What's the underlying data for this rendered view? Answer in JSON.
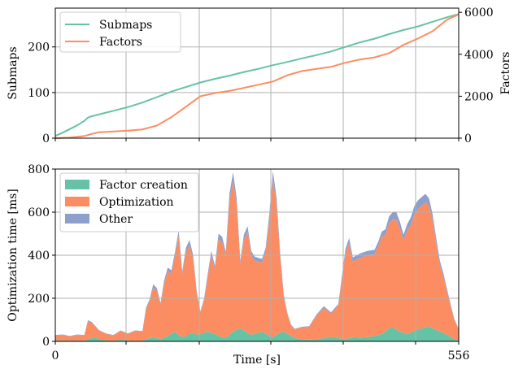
{
  "chart_data": [
    {
      "type": "line",
      "xlim": [
        0,
        556
      ],
      "ylabel": "Submaps",
      "ylim": [
        0,
        285
      ],
      "yticks": [
        0,
        100,
        200
      ],
      "ylabel_right": "Factors",
      "ylim_right": [
        0,
        6200
      ],
      "yticks_right": [
        0,
        2000,
        4000,
        6000
      ],
      "grid": true,
      "legend_placement": "top-left",
      "series": [
        {
          "name": "Submaps",
          "axis": "left",
          "color": "#66c2a5",
          "x": [
            0,
            10,
            20,
            30,
            40,
            45,
            50,
            60,
            80,
            100,
            120,
            140,
            160,
            180,
            200,
            220,
            240,
            260,
            280,
            300,
            320,
            340,
            360,
            380,
            400,
            420,
            440,
            460,
            480,
            500,
            520,
            540,
            556
          ],
          "y": [
            5,
            12,
            20,
            28,
            38,
            45,
            48,
            52,
            60,
            68,
            78,
            90,
            102,
            112,
            122,
            130,
            137,
            145,
            152,
            160,
            167,
            175,
            182,
            190,
            200,
            210,
            218,
            228,
            237,
            245,
            255,
            265,
            272
          ]
        },
        {
          "name": "Factors",
          "axis": "right",
          "color": "#fc8d62",
          "x": [
            0,
            20,
            40,
            50,
            60,
            80,
            100,
            120,
            140,
            160,
            180,
            200,
            220,
            240,
            260,
            280,
            300,
            320,
            340,
            360,
            380,
            400,
            420,
            440,
            460,
            480,
            500,
            520,
            540,
            556
          ],
          "y": [
            0,
            30,
            100,
            200,
            280,
            320,
            360,
            420,
            600,
            1000,
            1500,
            2000,
            2150,
            2250,
            2400,
            2550,
            2700,
            3000,
            3200,
            3300,
            3400,
            3600,
            3750,
            3850,
            4050,
            4450,
            4750,
            5100,
            5650,
            5900
          ]
        }
      ]
    },
    {
      "type": "area",
      "stacked": true,
      "xlabel": "Time [s]",
      "xlim": [
        0,
        556
      ],
      "xticks": [
        0,
        556
      ],
      "ylabel": "Optimization time [ms]",
      "ylim": [
        0,
        800
      ],
      "yticks": [
        0,
        200,
        400,
        600,
        800
      ],
      "grid": true,
      "legend_placement": "top-left",
      "x": [
        0,
        10,
        20,
        30,
        40,
        45,
        50,
        55,
        60,
        70,
        80,
        90,
        100,
        110,
        120,
        125,
        130,
        135,
        140,
        145,
        150,
        155,
        160,
        165,
        170,
        175,
        180,
        185,
        190,
        195,
        200,
        205,
        210,
        215,
        220,
        225,
        230,
        235,
        240,
        245,
        250,
        255,
        260,
        265,
        270,
        275,
        280,
        285,
        290,
        295,
        300,
        305,
        310,
        315,
        320,
        325,
        330,
        340,
        350,
        360,
        370,
        380,
        390,
        400,
        405,
        410,
        420,
        430,
        440,
        445,
        450,
        455,
        460,
        465,
        470,
        475,
        480,
        485,
        490,
        495,
        500,
        505,
        510,
        515,
        520,
        525,
        530,
        535,
        540,
        545,
        550,
        556
      ],
      "series": [
        {
          "name": "Factor creation",
          "color": "#66c2a5",
          "values": [
            3,
            5,
            3,
            5,
            3,
            8,
            15,
            20,
            10,
            5,
            3,
            8,
            5,
            3,
            5,
            8,
            15,
            20,
            15,
            10,
            18,
            25,
            35,
            45,
            30,
            20,
            25,
            35,
            40,
            30,
            35,
            40,
            45,
            40,
            35,
            25,
            20,
            15,
            30,
            45,
            55,
            60,
            50,
            40,
            30,
            35,
            40,
            45,
            35,
            25,
            20,
            30,
            40,
            45,
            35,
            25,
            15,
            10,
            8,
            10,
            15,
            20,
            15,
            10,
            15,
            20,
            18,
            20,
            25,
            30,
            35,
            45,
            60,
            65,
            55,
            45,
            40,
            35,
            40,
            50,
            55,
            60,
            65,
            70,
            60,
            55,
            45,
            40,
            30,
            20,
            10,
            5
          ]
        },
        {
          "name": "Optimization",
          "color": "#fc8d62",
          "values": [
            25,
            25,
            20,
            25,
            25,
            85,
            70,
            50,
            40,
            30,
            25,
            40,
            30,
            45,
            40,
            140,
            170,
            230,
            220,
            160,
            250,
            300,
            280,
            350,
            460,
            290,
            390,
            410,
            340,
            190,
            100,
            150,
            250,
            360,
            300,
            450,
            440,
            380,
            620,
            700,
            580,
            300,
            420,
            470,
            370,
            340,
            330,
            320,
            380,
            540,
            730,
            600,
            350,
            160,
            90,
            50,
            40,
            55,
            60,
            110,
            140,
            110,
            150,
            400,
            440,
            350,
            370,
            380,
            380,
            410,
            450,
            450,
            490,
            500,
            510,
            480,
            430,
            480,
            500,
            540,
            560,
            570,
            580,
            560,
            500,
            400,
            310,
            260,
            200,
            140,
            90,
            50
          ]
        },
        {
          "name": "Other",
          "color": "#8da0cb",
          "values": [
            2,
            2,
            2,
            2,
            2,
            5,
            5,
            3,
            3,
            2,
            2,
            3,
            2,
            3,
            3,
            8,
            10,
            15,
            12,
            8,
            15,
            18,
            15,
            20,
            25,
            15,
            20,
            25,
            20,
            10,
            5,
            8,
            15,
            20,
            15,
            25,
            25,
            20,
            35,
            40,
            30,
            15,
            25,
            25,
            20,
            18,
            18,
            18,
            20,
            30,
            40,
            35,
            20,
            10,
            5,
            3,
            3,
            3,
            3,
            5,
            8,
            5,
            8,
            20,
            25,
            20,
            20,
            20,
            20,
            22,
            25,
            25,
            30,
            35,
            35,
            30,
            25,
            30,
            35,
            40,
            40,
            40,
            40,
            35,
            30,
            25,
            20,
            15,
            12,
            10,
            5,
            3
          ]
        }
      ]
    }
  ]
}
